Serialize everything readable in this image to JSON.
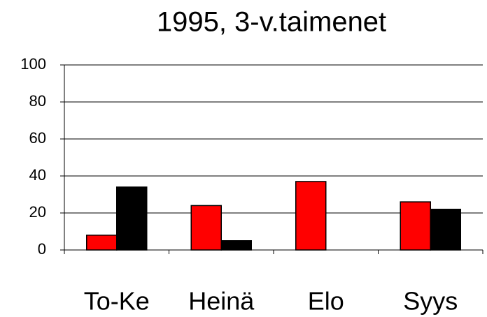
{
  "chart_data": {
    "type": "bar",
    "title": "1995, 3-v.taimenet",
    "categories": [
      "To-Ke",
      "Heinä",
      "Elo",
      "Syys"
    ],
    "series": [
      {
        "color": "#ff0000",
        "values": [
          8,
          24,
          37,
          26
        ]
      },
      {
        "color": "#000000",
        "values": [
          34,
          5,
          null,
          22
        ]
      }
    ],
    "ylim": [
      0,
      100
    ],
    "yticks": [
      0,
      20,
      40,
      60,
      80,
      100
    ],
    "grid": true
  }
}
